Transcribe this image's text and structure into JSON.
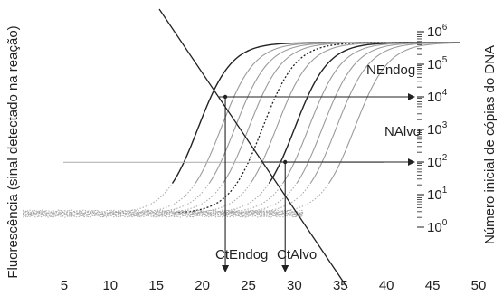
{
  "chart_data": {
    "type": "line",
    "title": "",
    "xlabel": "",
    "ylabel_left": "Fluorescência (sinal detectado na reação)",
    "ylabel_right": "Número inicial de cópias do DNA",
    "x_ticks": [
      5,
      10,
      15,
      20,
      25,
      30,
      35,
      40,
      45,
      50
    ],
    "xlim": [
      0,
      52
    ],
    "right_axis": {
      "scale": "log",
      "base": "10",
      "exponents": [
        "0",
        "1",
        "2",
        "3",
        "4",
        "5",
        "6"
      ]
    },
    "threshold_level": 0.3,
    "series": [
      {
        "name": "",
        "style": "solid-dark",
        "ct": 18.0
      },
      {
        "name": "",
        "style": "solid-gray",
        "ct": 20.5
      },
      {
        "name": "",
        "style": "solid-gray",
        "ct": 22.0
      },
      {
        "name": "",
        "style": "solid-gray",
        "ct": 23.5
      },
      {
        "name": "",
        "style": "dotted-dark",
        "ct": 25.0
      },
      {
        "name": "",
        "style": "solid-gray",
        "ct": 26.5
      },
      {
        "name": "",
        "style": "solid-dark",
        "ct": 28.5
      },
      {
        "name": "",
        "style": "solid-gray",
        "ct": 30.0
      },
      {
        "name": "",
        "style": "solid-gray",
        "ct": 31.5
      },
      {
        "name": "",
        "style": "solid-gray",
        "ct": 33.0
      },
      {
        "name": "",
        "style": "solid-gray",
        "ct": 35.0
      }
    ],
    "annotations": {
      "ct_endog": {
        "label": "CtEndog",
        "x": 22.5
      },
      "ct_alvo": {
        "label": "CtAlvo",
        "x": 29.0
      },
      "n_endog": {
        "label": "NEndog",
        "log10_copies": 4
      },
      "n_alvo": {
        "label": "NAlvo",
        "log10_copies": 2
      }
    },
    "grid": false,
    "legend": "none",
    "colors": {
      "dark": "#222222",
      "gray": "#9a9a9a",
      "dots": "#a8a8a8",
      "threshold": "#b4b4b4"
    }
  }
}
